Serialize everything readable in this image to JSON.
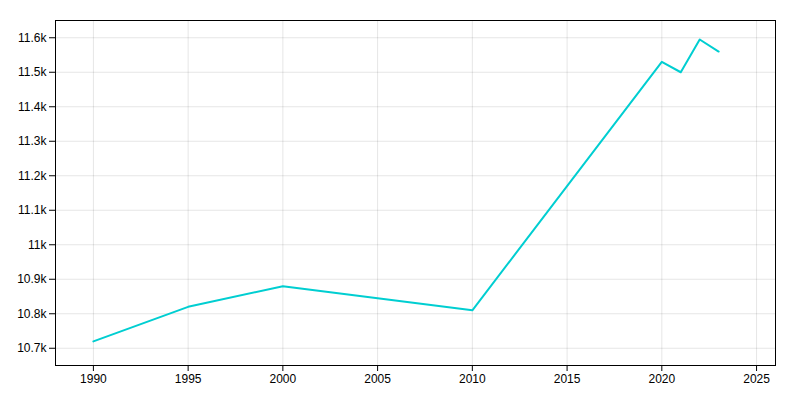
{
  "chart_data": {
    "type": "line",
    "x": [
      1990,
      1995,
      2000,
      2005,
      2010,
      2020,
      2021,
      2022,
      2023
    ],
    "values": [
      10720,
      10820,
      10880,
      10845,
      10810,
      11530,
      11500,
      11595,
      11560
    ],
    "color": "#00CED1",
    "xlim": [
      1988,
      2026
    ],
    "ylim": [
      10650,
      11650
    ],
    "xticks": [
      1990,
      1995,
      2000,
      2005,
      2010,
      2015,
      2020,
      2025
    ],
    "yticks": [
      {
        "value": 10700,
        "label": "10.7k"
      },
      {
        "value": 10800,
        "label": "10.8k"
      },
      {
        "value": 10900,
        "label": "10.9k"
      },
      {
        "value": 11000,
        "label": "11k"
      },
      {
        "value": 11100,
        "label": "11.1k"
      },
      {
        "value": 11200,
        "label": "11.2k"
      },
      {
        "value": 11300,
        "label": "11.3k"
      },
      {
        "value": 11400,
        "label": "11.4k"
      },
      {
        "value": 11500,
        "label": "11.5k"
      },
      {
        "value": 11600,
        "label": "11.6k"
      }
    ],
    "grid": true
  }
}
